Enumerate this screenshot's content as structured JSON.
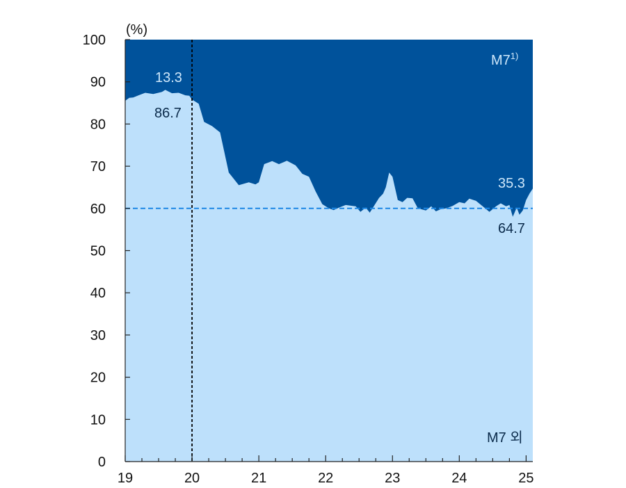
{
  "chart_data": {
    "type": "area",
    "unit_label": "(%)",
    "x_tick_labels": [
      "19",
      "20",
      "21",
      "22",
      "23",
      "24",
      "25"
    ],
    "xlim": [
      2019.0,
      2025.1
    ],
    "y_tick_labels": [
      "0",
      "10",
      "20",
      "30",
      "40",
      "50",
      "60",
      "70",
      "80",
      "90",
      "100"
    ],
    "ylim": [
      0,
      100
    ],
    "series": [
      {
        "name": "M7 외",
        "label_text": "M7 외",
        "color": "#bde0fb"
      },
      {
        "name": "M7",
        "label_text": "M7",
        "label_sup": "1)",
        "color": "#00529b"
      }
    ],
    "x": [
      2019.0,
      2019.06,
      2019.12,
      2019.2,
      2019.3,
      2019.42,
      2019.55,
      2019.6,
      2019.7,
      2019.8,
      2019.9,
      2019.96,
      2020.0,
      2020.1,
      2020.18,
      2020.3,
      2020.42,
      2020.55,
      2020.7,
      2020.85,
      2020.95,
      2021.0,
      2021.08,
      2021.2,
      2021.3,
      2021.42,
      2021.55,
      2021.65,
      2021.75,
      2021.85,
      2021.95,
      2022.05,
      2022.12,
      2022.2,
      2022.3,
      2022.45,
      2022.52,
      2022.6,
      2022.66,
      2022.72,
      2022.8,
      2022.86,
      2022.9,
      2022.95,
      2023.0,
      2023.08,
      2023.15,
      2023.22,
      2023.3,
      2023.38,
      2023.5,
      2023.58,
      2023.65,
      2023.72,
      2023.8,
      2023.9,
      2024.0,
      2024.08,
      2024.15,
      2024.25,
      2024.35,
      2024.45,
      2024.55,
      2024.62,
      2024.7,
      2024.75,
      2024.8,
      2024.86,
      2024.9,
      2024.95,
      2025.0,
      2025.05,
      2025.1
    ],
    "m7_excl": [
      85.5,
      86.2,
      86.3,
      86.8,
      87.4,
      87.1,
      87.6,
      88.1,
      87.3,
      87.4,
      86.8,
      86.7,
      85.8,
      84.8,
      80.5,
      79.5,
      78.0,
      68.5,
      65.5,
      66.2,
      65.7,
      66.2,
      70.5,
      71.2,
      70.5,
      71.3,
      70.2,
      68.2,
      67.5,
      64.0,
      61.0,
      60.0,
      59.6,
      60.2,
      60.8,
      60.5,
      59.2,
      60.2,
      59.0,
      60.5,
      62.5,
      63.5,
      65.0,
      68.5,
      67.5,
      62.0,
      61.5,
      62.5,
      62.4,
      60.0,
      59.5,
      60.5,
      59.3,
      59.8,
      60.0,
      60.6,
      61.5,
      61.2,
      62.3,
      61.8,
      60.5,
      59.2,
      60.5,
      61.2,
      60.5,
      60.8,
      58.0,
      60.2,
      58.5,
      59.5,
      62.0,
      63.5,
      64.7
    ],
    "m7_share_end_label": "35.3",
    "m7_excl_end_label": "64.7",
    "m7_share_2020_label": "13.3",
    "m7_excl_2020_label": "86.7",
    "reference_line": {
      "y": 60,
      "style": "dashed",
      "color": "#1e88e5"
    },
    "vertical_marker": {
      "x": 2020.0,
      "style": "dashed",
      "color": "#000000"
    },
    "grid": false
  }
}
